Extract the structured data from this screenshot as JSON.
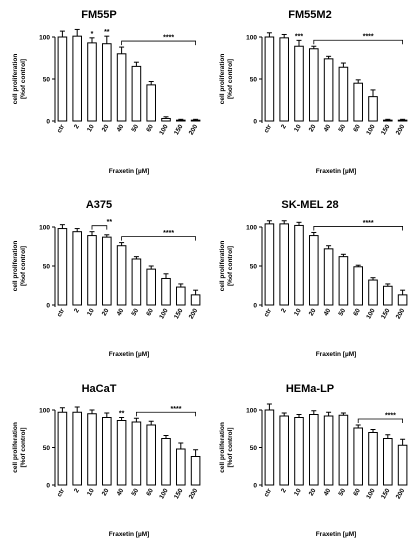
{
  "chart_data": [
    {
      "type": "bar",
      "title": "FM55P",
      "xlabel": "Fraxetin [µM]",
      "ylabel": "cell proliferation\n[%of control]",
      "ylim": [
        0,
        100
      ],
      "yticks": [
        0,
        50,
        100
      ],
      "categories": [
        "ctr",
        "2",
        "10",
        "20",
        "40",
        "50",
        "60",
        "100",
        "150",
        "200"
      ],
      "values": [
        100,
        101,
        93,
        92,
        80,
        65,
        43,
        3,
        1,
        1
      ],
      "errors": [
        7,
        8,
        6,
        9,
        8,
        5,
        4,
        2,
        1,
        1
      ],
      "significance": [
        {
          "index": 2,
          "label": "*"
        },
        {
          "index": 3,
          "label": "**"
        }
      ],
      "bracket": {
        "from": 4,
        "to": 9,
        "label": "****"
      }
    },
    {
      "type": "bar",
      "title": "FM55M2",
      "xlabel": "Fraxetin [µM]",
      "ylabel": "cell proliferation\n[%of control]",
      "ylim": [
        0,
        100
      ],
      "yticks": [
        0,
        50,
        100
      ],
      "categories": [
        "ctr",
        "2",
        "10",
        "20",
        "40",
        "50",
        "60",
        "100",
        "150",
        "200"
      ],
      "values": [
        100,
        99,
        89,
        86,
        74,
        64,
        45,
        29,
        1,
        1
      ],
      "errors": [
        5,
        4,
        7,
        3,
        3,
        5,
        4,
        8,
        1,
        1
      ],
      "significance": [
        {
          "index": 2,
          "label": "***"
        }
      ],
      "bracket": {
        "from": 3,
        "to": 9,
        "label": "****"
      }
    },
    {
      "type": "bar",
      "title": "A375",
      "xlabel": "Fraxetin [µM]",
      "ylabel": "cell proliferation\n[%of control]",
      "ylim": [
        0,
        100
      ],
      "yticks": [
        0,
        50,
        100
      ],
      "categories": [
        "ctr",
        "2",
        "10",
        "20",
        "40",
        "50",
        "60",
        "100",
        "150",
        "200"
      ],
      "values": [
        98,
        94,
        89,
        87,
        76,
        59,
        46,
        34,
        23,
        13
      ],
      "errors": [
        5,
        4,
        5,
        3,
        4,
        3,
        4,
        6,
        4,
        6
      ],
      "significance": [],
      "brackets": [
        {
          "from": 2,
          "to": 3,
          "label": "**"
        },
        {
          "from": 4,
          "to": 9,
          "label": "****"
        }
      ]
    },
    {
      "type": "bar",
      "title": "SK-MEL 28",
      "xlabel": "Fraxetin [µM]",
      "ylabel": "cell proliferation\n[%of control]",
      "ylim": [
        0,
        100
      ],
      "yticks": [
        0,
        50,
        100
      ],
      "categories": [
        "ctr",
        "2",
        "10",
        "20",
        "40",
        "50",
        "60",
        "100",
        "150",
        "200"
      ],
      "values": [
        104,
        104,
        102,
        89,
        72,
        62,
        49,
        32,
        24,
        13
      ],
      "errors": [
        4,
        4,
        4,
        4,
        4,
        3,
        2,
        3,
        3,
        6
      ],
      "significance": [],
      "bracket": {
        "from": 3,
        "to": 9,
        "label": "****"
      }
    },
    {
      "type": "bar",
      "title": "HaCaT",
      "xlabel": "Fraxetin [µM]",
      "ylabel": "cell proliferation\n[%of control]",
      "ylim": [
        0,
        100
      ],
      "yticks": [
        0,
        50,
        100
      ],
      "categories": [
        "ctr",
        "2",
        "10",
        "20",
        "40",
        "50",
        "60",
        "100",
        "150",
        "200"
      ],
      "values": [
        97,
        97,
        95,
        90,
        86,
        84,
        80,
        62,
        48,
        38
      ],
      "errors": [
        6,
        7,
        5,
        6,
        4,
        5,
        5,
        4,
        8,
        9
      ],
      "significance": [
        {
          "index": 4,
          "label": "**"
        }
      ],
      "bracket": {
        "from": 5,
        "to": 9,
        "label": "****"
      }
    },
    {
      "type": "bar",
      "title": "HEMa-LP",
      "xlabel": "Fraxetin [µM]",
      "ylabel": "cell proliferation\n[%of control]",
      "ylim": [
        0,
        100
      ],
      "yticks": [
        0,
        50,
        100
      ],
      "categories": [
        "ctr",
        "2",
        "10",
        "20",
        "40",
        "50",
        "60",
        "100",
        "150",
        "200"
      ],
      "values": [
        100,
        92,
        90,
        94,
        92,
        93,
        76,
        70,
        62,
        53
      ],
      "errors": [
        8,
        4,
        4,
        5,
        5,
        3,
        4,
        4,
        5,
        8
      ],
      "significance": [],
      "bracket": {
        "from": 6,
        "to": 9,
        "label": "****"
      }
    }
  ]
}
